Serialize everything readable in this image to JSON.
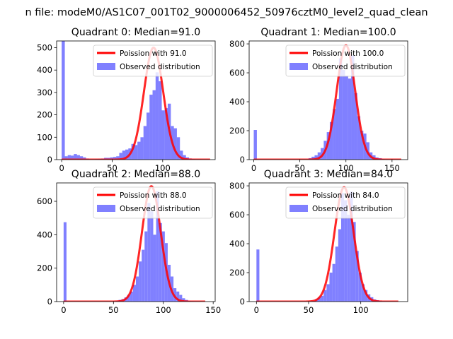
{
  "figure": {
    "suptitle": "n file: modeM0/AS1C07_001T02_9000006452_50976cztM0_level2_quad_clean"
  },
  "chart_data": [
    {
      "type": "bar",
      "title": "Quadrant 0: Median=91.0",
      "legend": {
        "placement": "upper-right",
        "entries": [
          "Poission with 91.0",
          "Observed distribution"
        ]
      },
      "colors": {
        "poisson": "#ff0000",
        "observed": "#8080ff"
      },
      "xlim": [
        -5,
        152
      ],
      "ylim": [
        0,
        530
      ],
      "xticks": [
        0,
        50,
        100
      ],
      "yticks": [
        0,
        100,
        200,
        300,
        400,
        500
      ],
      "bin_width": 3.1,
      "hist_x": [
        0,
        3,
        6,
        9,
        12,
        15,
        18,
        21,
        24,
        27,
        30,
        33,
        36,
        39,
        42,
        45,
        48,
        51,
        54,
        57,
        60,
        63,
        66,
        69,
        72,
        75,
        78,
        81,
        84,
        87,
        90,
        93,
        96,
        99,
        102,
        105,
        108,
        111,
        114,
        117,
        120,
        123,
        126,
        129,
        132,
        135,
        138,
        141,
        144,
        147
      ],
      "hist_y": [
        530,
        15,
        20,
        18,
        25,
        20,
        15,
        10,
        5,
        2,
        2,
        3,
        4,
        5,
        8,
        8,
        10,
        12,
        15,
        30,
        40,
        45,
        50,
        70,
        65,
        80,
        100,
        150,
        210,
        290,
        310,
        390,
        350,
        220,
        230,
        250,
        150,
        140,
        100,
        40,
        20,
        10,
        5,
        3,
        2,
        2,
        1,
        1,
        0,
        0
      ],
      "poisson_mean": 91.0,
      "poisson_peak": 500,
      "poisson_curve": {
        "x_range": [
          0,
          147
        ],
        "sigma": 9.54
      }
    },
    {
      "type": "bar",
      "title": "Quadrant 1: Median=100.0",
      "legend": {
        "placement": "upper-right",
        "entries": [
          "Poission with 100.0",
          "Observed distribution"
        ]
      },
      "colors": {
        "poisson": "#ff0000",
        "observed": "#8080ff"
      },
      "xlim": [
        -5,
        167
      ],
      "ylim": [
        0,
        820
      ],
      "xticks": [
        0,
        50,
        100,
        150
      ],
      "yticks": [
        0,
        200,
        400,
        600,
        800
      ],
      "bin_width": 3.4,
      "hist_x": [
        0,
        3.3,
        6.6,
        9.9,
        13.2,
        16.5,
        19.8,
        23.1,
        26.4,
        29.7,
        33,
        36.3,
        39.6,
        42.9,
        46.2,
        49.5,
        52.8,
        56.1,
        59.4,
        62.7,
        66,
        69.3,
        72.6,
        75.9,
        79.2,
        82.5,
        85.8,
        89.1,
        92.4,
        95.7,
        99,
        102.3,
        105.6,
        108.9,
        112.2,
        115.5,
        118.8,
        122.1,
        125.4,
        128.7,
        132,
        135.3,
        138.6,
        141.9,
        145.2,
        148.5,
        151.8,
        155.1,
        158.4
      ],
      "hist_y": [
        205,
        0,
        0,
        0,
        0,
        0,
        0,
        0,
        0,
        0,
        0,
        0,
        0,
        0,
        0,
        0,
        0,
        0,
        10,
        20,
        30,
        50,
        80,
        130,
        190,
        260,
        350,
        420,
        700,
        620,
        580,
        560,
        720,
        460,
        300,
        200,
        180,
        120,
        50,
        30,
        15,
        10,
        5,
        3,
        2,
        1,
        1,
        0,
        0
      ],
      "poisson_mean": 100.0,
      "poisson_peak": 790,
      "poisson_curve": {
        "x_range": [
          0,
          160
        ],
        "sigma": 10.0
      }
    },
    {
      "type": "bar",
      "title": "Quadrant 2: Median=88.0",
      "legend": {
        "placement": "upper-right",
        "entries": [
          "Poission with 88.0",
          "Observed distribution"
        ]
      },
      "colors": {
        "poisson": "#ff0000",
        "observed": "#8080ff"
      },
      "xlim": [
        -7,
        152
      ],
      "ylim": [
        0,
        710
      ],
      "xticks": [
        0,
        50,
        100,
        150
      ],
      "yticks": [
        0,
        200,
        400,
        600
      ],
      "bin_width": 2.9,
      "hist_x": [
        0,
        2.9,
        5.8,
        8.7,
        11.6,
        14.5,
        17.4,
        20.3,
        23.2,
        26.1,
        29,
        31.9,
        34.8,
        37.7,
        40.6,
        43.5,
        46.4,
        49.3,
        52.2,
        55.1,
        58,
        60.9,
        63.8,
        66.7,
        69.6,
        72.5,
        75.4,
        78.3,
        81.2,
        84.1,
        87,
        89.9,
        92.8,
        95.7,
        98.6,
        101.5,
        104.4,
        107.3,
        110.2,
        113.1,
        116,
        118.9,
        121.8,
        124.7,
        127.6,
        130.5,
        133.4,
        136.3,
        139.2,
        142.1
      ],
      "hist_y": [
        475,
        0,
        0,
        0,
        0,
        0,
        0,
        0,
        0,
        0,
        0,
        0,
        0,
        0,
        0,
        0,
        0,
        0,
        5,
        10,
        15,
        25,
        40,
        60,
        100,
        150,
        240,
        310,
        420,
        590,
        540,
        400,
        660,
        470,
        420,
        350,
        220,
        150,
        80,
        60,
        40,
        20,
        10,
        5,
        3,
        2,
        1,
        1,
        0,
        0
      ],
      "poisson_mean": 88.0,
      "poisson_peak": 690,
      "poisson_curve": {
        "x_range": [
          0,
          142
        ],
        "sigma": 9.38
      }
    },
    {
      "type": "bar",
      "title": "Quadrant 3: Median=84.0",
      "legend": {
        "placement": "upper-right",
        "entries": [
          "Poission with 84.0",
          "Observed distribution"
        ]
      },
      "colors": {
        "poisson": "#ff0000",
        "observed": "#8080ff"
      },
      "xlim": [
        -7,
        145
      ],
      "ylim": [
        0,
        820
      ],
      "xticks": [
        0,
        50,
        100
      ],
      "yticks": [
        0,
        200,
        400,
        600,
        800
      ],
      "bin_width": 2.8,
      "hist_x": [
        0,
        2.8,
        5.6,
        8.4,
        11.2,
        14,
        16.8,
        19.6,
        22.4,
        25.2,
        28,
        30.8,
        33.6,
        36.4,
        39.2,
        42,
        44.8,
        47.6,
        50.4,
        53.2,
        56,
        58.8,
        61.6,
        64.4,
        67.2,
        70,
        72.8,
        75.6,
        78.4,
        81.2,
        84,
        86.8,
        89.6,
        92.4,
        95.2,
        98,
        100.8,
        103.6,
        106.4,
        109.2,
        112,
        114.8,
        117.6,
        120.4,
        123.2,
        126,
        128.8,
        131.6,
        134.4
      ],
      "hist_y": [
        360,
        0,
        0,
        0,
        0,
        0,
        0,
        0,
        0,
        0,
        0,
        0,
        0,
        0,
        0,
        0,
        0,
        0,
        0,
        5,
        15,
        30,
        40,
        80,
        120,
        200,
        260,
        380,
        500,
        750,
        700,
        600,
        760,
        550,
        350,
        200,
        120,
        80,
        50,
        30,
        15,
        10,
        5,
        3,
        2,
        1,
        1,
        0,
        0
      ],
      "poisson_mean": 84.0,
      "poisson_peak": 790,
      "poisson_curve": {
        "x_range": [
          0,
          136
        ],
        "sigma": 9.17
      }
    }
  ]
}
